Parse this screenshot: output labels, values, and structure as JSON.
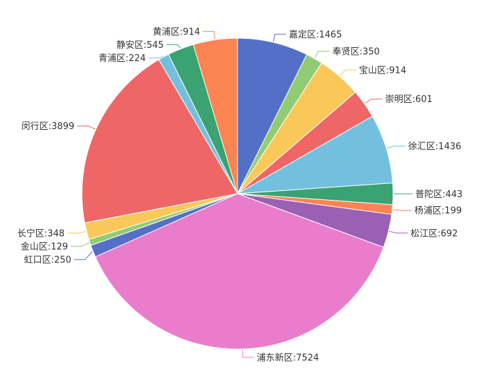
{
  "chart_data": {
    "type": "pie",
    "start_angle_deg": 90,
    "direction": "clockwise",
    "label_format": "{name}:{value}",
    "slices": [
      {
        "name": "嘉定区",
        "value": 1465,
        "color": "#5470c6"
      },
      {
        "name": "奉贤区",
        "value": 350,
        "color": "#91cc75"
      },
      {
        "name": "宝山区",
        "value": 914,
        "color": "#fac858"
      },
      {
        "name": "崇明区",
        "value": 601,
        "color": "#ee6666"
      },
      {
        "name": "徐汇区",
        "value": 1436,
        "color": "#73c0de"
      },
      {
        "name": "普陀区",
        "value": 443,
        "color": "#3ba272"
      },
      {
        "name": "杨浦区",
        "value": 199,
        "color": "#fc8452"
      },
      {
        "name": "松江区",
        "value": 692,
        "color": "#9a60b4"
      },
      {
        "name": "浦东新区",
        "value": 7524,
        "color": "#ea7ccc"
      },
      {
        "name": "虹口区",
        "value": 250,
        "color": "#5470c6"
      },
      {
        "name": "金山区",
        "value": 129,
        "color": "#91cc75"
      },
      {
        "name": "长宁区",
        "value": 348,
        "color": "#fac858"
      },
      {
        "name": "闵行区",
        "value": 3899,
        "color": "#ee6666"
      },
      {
        "name": "青浦区",
        "value": 224,
        "color": "#73c0de"
      },
      {
        "name": "静安区",
        "value": 545,
        "color": "#3ba272"
      },
      {
        "name": "黄浦区",
        "value": 914,
        "color": "#fc8452"
      }
    ]
  }
}
